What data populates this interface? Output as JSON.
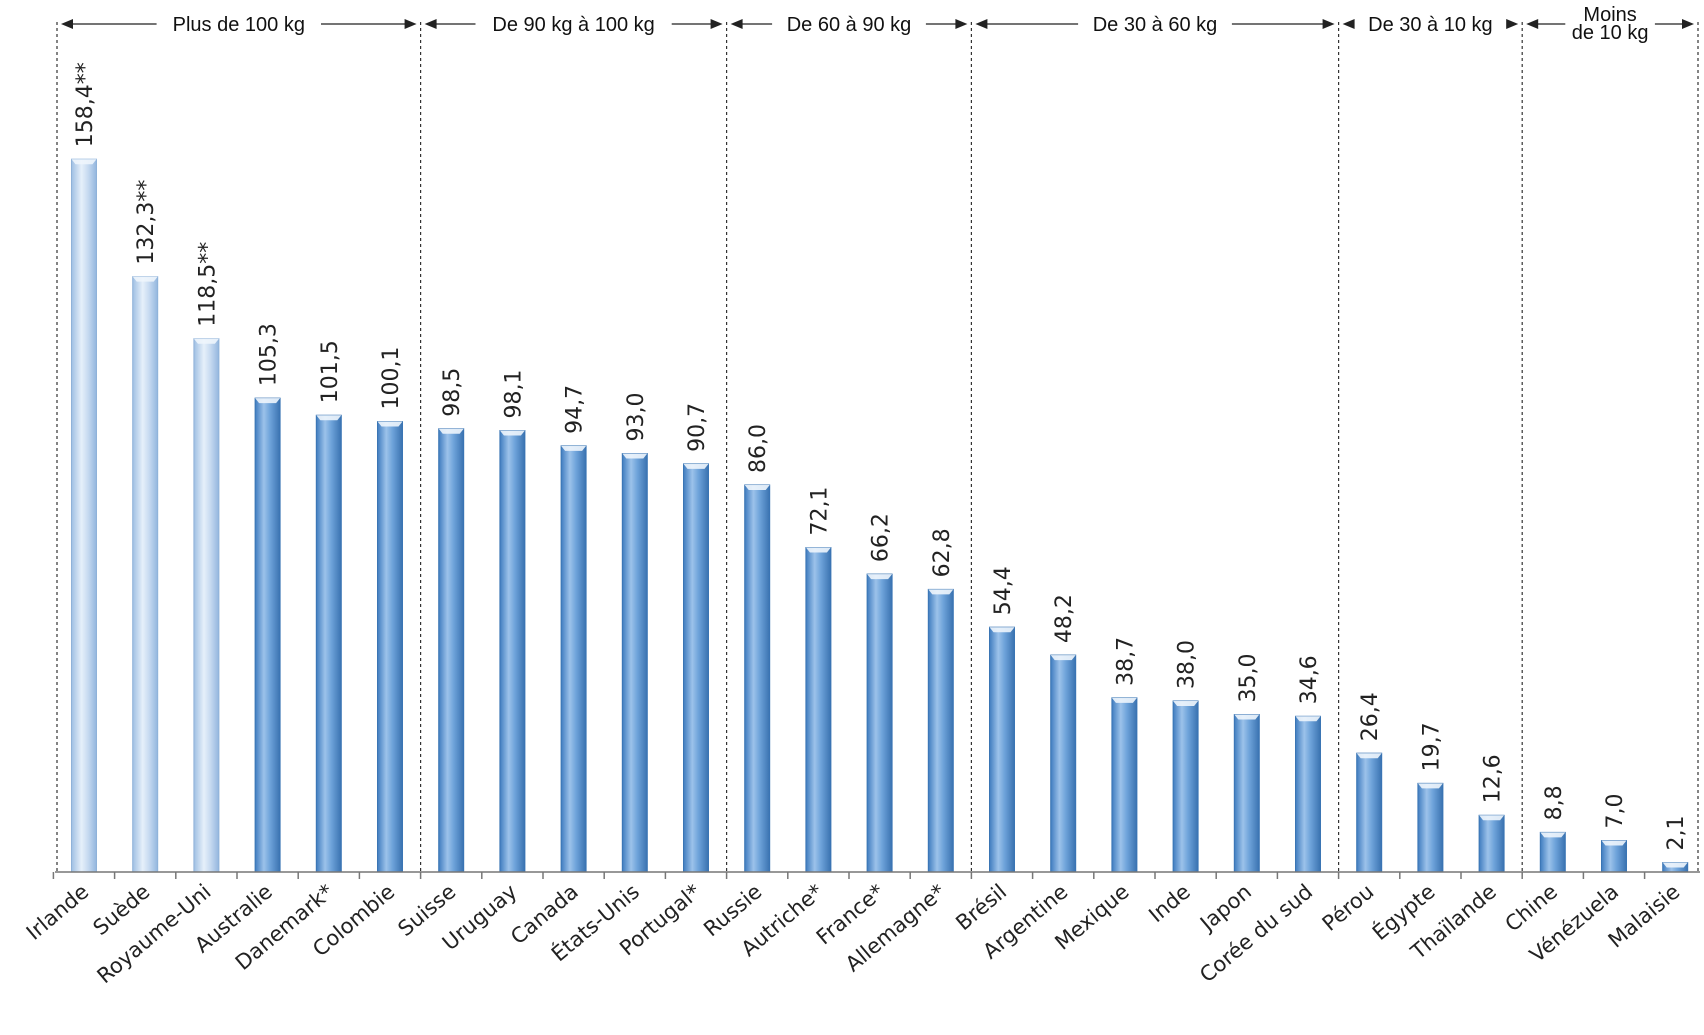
{
  "chart_data": {
    "type": "bar",
    "title": "",
    "xlabel": "",
    "ylabel": "",
    "ylim": [
      0,
      175
    ],
    "grid": false,
    "colors": {
      "light": "#c5d9f0",
      "light_edge": "#8fb2d9",
      "blue": "#5b95cf",
      "blue_edge": "#3a75b4",
      "highlight": "#eef5fc"
    },
    "categories": [
      "Irlande",
      "Suède",
      "Royaume-Uni",
      "Australie",
      "Danemark*",
      "Colombie",
      "Suisse",
      "Uruguay",
      "Canada",
      "États-Unis",
      "Portugal*",
      "Russie",
      "Autriche*",
      "France*",
      "Allemagne*",
      "Brésil",
      "Argentine",
      "Mexique",
      "Inde",
      "Japon",
      "Corée du sud",
      "Pérou",
      "Égypte",
      "Thaïlande",
      "Chine",
      "Vénézuela",
      "Malaisie"
    ],
    "values": [
      158.4,
      132.3,
      118.5,
      105.3,
      101.5,
      100.1,
      98.5,
      98.1,
      94.7,
      93.0,
      90.7,
      86.0,
      72.1,
      66.2,
      62.8,
      54.4,
      48.2,
      38.7,
      38.0,
      35.0,
      34.6,
      26.4,
      19.7,
      12.6,
      8.8,
      7.0,
      2.1
    ],
    "value_labels": [
      "158,4**",
      "132,3**",
      "118,5**",
      "105,3",
      "101,5",
      "100,1",
      "98,5",
      "98,1",
      "94,7",
      "93,0",
      "90,7",
      "86,0",
      "72,1",
      "66,2",
      "62,8",
      "54,4",
      "48,2",
      "38,7",
      "38,0",
      "35,0",
      "34,6",
      "26,4",
      "19,7",
      "12,6",
      "8,8",
      "7,0",
      "2,1"
    ],
    "light_bars": [
      0,
      1,
      2
    ],
    "groups": [
      {
        "label": "Plus de 100 kg",
        "start": 0,
        "end": 5
      },
      {
        "label": "De 90 kg à 100 kg",
        "start": 6,
        "end": 10
      },
      {
        "label": "De 60 à 90 kg",
        "start": 11,
        "end": 14
      },
      {
        "label": "De 30 à 60 kg",
        "start": 15,
        "end": 20
      },
      {
        "label": "De 30 à 10 kg",
        "start": 21,
        "end": 23
      },
      {
        "label": "Moins de 10 kg",
        "lines": [
          "Moins",
          "de 10 kg"
        ],
        "start": 24,
        "end": 26
      }
    ]
  }
}
